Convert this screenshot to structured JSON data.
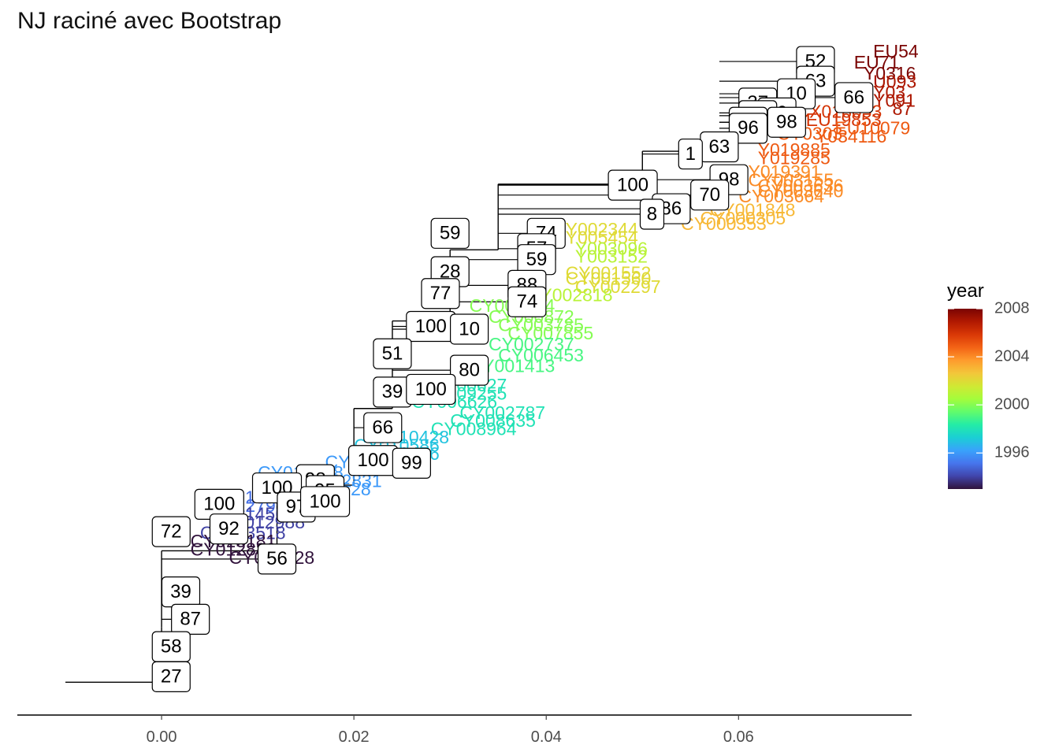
{
  "chart_data": {
    "type": "tree",
    "title": "NJ raciné avec Bootstrap",
    "xlabel": "",
    "ylabel": "",
    "xlim": [
      -0.015,
      0.078
    ],
    "x_ticks": [
      "0.00",
      "0.02",
      "0.04",
      "0.06"
    ],
    "x_tick_values": [
      0.0,
      0.02,
      0.04,
      0.06
    ],
    "legend": {
      "title": "year",
      "position": "right",
      "range": [
        1993,
        2008
      ],
      "ticks": [
        "1996",
        "2000",
        "2004",
        "2008"
      ],
      "tick_values": [
        1996,
        2000,
        2004,
        2008
      ],
      "colormap": [
        "#30123b",
        "#4145ab",
        "#4675ed",
        "#39a2fc",
        "#1bcfd4",
        "#24eca6",
        "#61fc6c",
        "#a4fc3b",
        "#d1e834",
        "#f3c63a",
        "#fe9b2d",
        "#f36315",
        "#d93806",
        "#b11901",
        "#7a0403"
      ]
    },
    "backbone": [
      {
        "x": -0.01,
        "y": 6
      },
      {
        "x": 0.0,
        "y": 6
      },
      {
        "x": 0.0,
        "y": 16
      },
      {
        "x": 0.0,
        "y": 22
      },
      {
        "x": 0.012,
        "y": 30
      },
      {
        "x": 0.02,
        "y": 42
      },
      {
        "x": 0.024,
        "y": 56
      },
      {
        "x": 0.03,
        "y": 72
      },
      {
        "x": 0.035,
        "y": 85
      },
      {
        "x": 0.05,
        "y": 97
      },
      {
        "x": 0.058,
        "y": 103
      }
    ],
    "bootstrap_labels": [
      {
        "value": "52",
        "x": 0.068,
        "y": 119.4
      },
      {
        "value": "63",
        "x": 0.068,
        "y": 115.8
      },
      {
        "value": "10",
        "x": 0.066,
        "y": 113.5
      },
      {
        "value": "66",
        "x": 0.072,
        "y": 112.8
      },
      {
        "value": "37",
        "x": 0.062,
        "y": 111.8
      },
      {
        "value": "99",
        "x": 0.064,
        "y": 110.0
      },
      {
        "value": "56",
        "x": 0.062,
        "y": 109.5
      },
      {
        "value": "55",
        "x": 0.061,
        "y": 108.3
      },
      {
        "value": "98",
        "x": 0.065,
        "y": 108.3
      },
      {
        "value": "96",
        "x": 0.061,
        "y": 107.2
      },
      {
        "value": "63",
        "x": 0.058,
        "y": 103.8
      },
      {
        "value": "1",
        "x": 0.055,
        "y": 102.5
      },
      {
        "value": "98",
        "x": 0.059,
        "y": 97.8
      },
      {
        "value": "70",
        "x": 0.057,
        "y": 95.0
      },
      {
        "value": "100",
        "x": 0.049,
        "y": 96.8
      },
      {
        "value": "86",
        "x": 0.053,
        "y": 92.5
      },
      {
        "value": "8",
        "x": 0.051,
        "y": 91.5
      },
      {
        "value": "59",
        "x": 0.03,
        "y": 88.0
      },
      {
        "value": "74",
        "x": 0.04,
        "y": 88.0
      },
      {
        "value": "57",
        "x": 0.039,
        "y": 85.2
      },
      {
        "value": "59",
        "x": 0.039,
        "y": 83.2
      },
      {
        "value": "28",
        "x": 0.03,
        "y": 81.0
      },
      {
        "value": "88",
        "x": 0.038,
        "y": 78.5
      },
      {
        "value": "74",
        "x": 0.038,
        "y": 75.5
      },
      {
        "value": "77",
        "x": 0.029,
        "y": 77.0
      },
      {
        "value": "100",
        "x": 0.028,
        "y": 71.0
      },
      {
        "value": "10",
        "x": 0.032,
        "y": 70.5
      },
      {
        "value": "51",
        "x": 0.024,
        "y": 66.0
      },
      {
        "value": "80",
        "x": 0.032,
        "y": 63.0
      },
      {
        "value": "39",
        "x": 0.024,
        "y": 59.0
      },
      {
        "value": "100",
        "x": 0.028,
        "y": 59.5
      },
      {
        "value": "66",
        "x": 0.023,
        "y": 52.5
      },
      {
        "value": "100",
        "x": 0.022,
        "y": 46.5
      },
      {
        "value": "99",
        "x": 0.026,
        "y": 46.0
      },
      {
        "value": "98",
        "x": 0.016,
        "y": 43.0
      },
      {
        "value": "95",
        "x": 0.017,
        "y": 41.0
      },
      {
        "value": "100",
        "x": 0.012,
        "y": 41.5
      },
      {
        "value": "100",
        "x": 0.006,
        "y": 38.5
      },
      {
        "value": "97",
        "x": 0.014,
        "y": 38.0
      },
      {
        "value": "100",
        "x": 0.017,
        "y": 39.0
      },
      {
        "value": "72",
        "x": 0.001,
        "y": 33.5
      },
      {
        "value": "92",
        "x": 0.007,
        "y": 34.0
      },
      {
        "value": "56",
        "x": 0.012,
        "y": 28.5
      },
      {
        "value": "39",
        "x": 0.002,
        "y": 22.5
      },
      {
        "value": "87",
        "x": 0.003,
        "y": 17.5
      },
      {
        "value": "58",
        "x": 0.001,
        "y": 12.5
      },
      {
        "value": "27",
        "x": 0.001,
        "y": 7.0
      }
    ],
    "tip_labels": [
      {
        "text": "EU54",
        "x": 0.074,
        "y": 121.0,
        "year": 2008
      },
      {
        "text": "EU71",
        "x": 0.072,
        "y": 119.0,
        "year": 2008
      },
      {
        "text": "Y0316",
        "x": 0.073,
        "y": 117.0,
        "year": 2008
      },
      {
        "text": "U093",
        "x": 0.074,
        "y": 115.5,
        "year": 2007
      },
      {
        "text": "Y03",
        "x": 0.074,
        "y": 113.5,
        "year": 2007
      },
      {
        "text": "Y091",
        "x": 0.074,
        "y": 112.0,
        "year": 2007
      },
      {
        "text": "87",
        "x": 0.076,
        "y": 110.5,
        "year": 2007
      },
      {
        "text": "CX018053",
        "x": 0.066,
        "y": 110.0,
        "year": 2006
      },
      {
        "text": "EU19853",
        "x": 0.067,
        "y": 108.5,
        "year": 2006
      },
      {
        "text": "EU10079",
        "x": 0.07,
        "y": 107.0,
        "year": 2005
      },
      {
        "text": "Y034116",
        "x": 0.068,
        "y": 105.5,
        "year": 2005
      },
      {
        "text": "CY0303",
        "x": 0.064,
        "y": 106.0,
        "year": 2005
      },
      {
        "text": "Y019885",
        "x": 0.062,
        "y": 103.0,
        "year": 2005
      },
      {
        "text": "Y019285",
        "x": 0.062,
        "y": 101.5,
        "year": 2005
      },
      {
        "text": "Y019391",
        "x": 0.061,
        "y": 99.0,
        "year": 2004
      },
      {
        "text": "CY003155",
        "x": 0.061,
        "y": 97.5,
        "year": 2004
      },
      {
        "text": "CY003636",
        "x": 0.062,
        "y": 96.5,
        "year": 2004
      },
      {
        "text": "CY003640",
        "x": 0.062,
        "y": 95.5,
        "year": 2004
      },
      {
        "text": "CY003664",
        "x": 0.06,
        "y": 94.5,
        "year": 2004
      },
      {
        "text": "CY001848",
        "x": 0.057,
        "y": 92.0,
        "year": 2003
      },
      {
        "text": "CY000305",
        "x": 0.056,
        "y": 90.5,
        "year": 2003
      },
      {
        "text": "CY000353",
        "x": 0.054,
        "y": 89.5,
        "year": 2003
      },
      {
        "text": "Y002344",
        "x": 0.042,
        "y": 88.5,
        "year": 2002
      },
      {
        "text": "Y005454",
        "x": 0.042,
        "y": 87.0,
        "year": 2002
      },
      {
        "text": "Y003096",
        "x": 0.043,
        "y": 85.0,
        "year": 2001
      },
      {
        "text": "Y003152",
        "x": 0.043,
        "y": 83.5,
        "year": 2001
      },
      {
        "text": "CY001552",
        "x": 0.042,
        "y": 80.5,
        "year": 2002
      },
      {
        "text": "CY001560",
        "x": 0.042,
        "y": 79.5,
        "year": 2002
      },
      {
        "text": "CY002297",
        "x": 0.043,
        "y": 78.0,
        "year": 2002
      },
      {
        "text": "CY002818",
        "x": 0.038,
        "y": 76.5,
        "year": 2001
      },
      {
        "text": "CY002094",
        "x": 0.032,
        "y": 74.5,
        "year": 2000
      },
      {
        "text": "CY000872",
        "x": 0.034,
        "y": 72.5,
        "year": 2000
      },
      {
        "text": "CY003785",
        "x": 0.035,
        "y": 71.0,
        "year": 2000
      },
      {
        "text": "CY007855",
        "x": 0.036,
        "y": 69.5,
        "year": 2000
      },
      {
        "text": "CY002737",
        "x": 0.034,
        "y": 67.5,
        "year": 1999
      },
      {
        "text": "CY006453",
        "x": 0.035,
        "y": 65.5,
        "year": 1999
      },
      {
        "text": "CY001413",
        "x": 0.032,
        "y": 63.5,
        "year": 1999
      },
      {
        "text": "CY000627",
        "x": 0.027,
        "y": 60.0,
        "year": 1998
      },
      {
        "text": "CY009255",
        "x": 0.027,
        "y": 58.5,
        "year": 1998
      },
      {
        "text": "CY006626",
        "x": 0.026,
        "y": 57.0,
        "year": 1998
      },
      {
        "text": "CY002787",
        "x": 0.031,
        "y": 55.0,
        "year": 1998
      },
      {
        "text": "CY008635",
        "x": 0.03,
        "y": 53.5,
        "year": 1998
      },
      {
        "text": "CY008964",
        "x": 0.028,
        "y": 52.0,
        "year": 1998
      },
      {
        "text": "CY010428",
        "x": 0.021,
        "y": 50.5,
        "year": 1997
      },
      {
        "text": "CY010586",
        "x": 0.02,
        "y": 49.0,
        "year": 1997
      },
      {
        "text": "CY009476",
        "x": 0.02,
        "y": 47.5,
        "year": 1997
      },
      {
        "text": "CY010036",
        "x": 0.017,
        "y": 46.0,
        "year": 1996
      },
      {
        "text": "CY010748",
        "x": 0.01,
        "y": 44.0,
        "year": 1996
      },
      {
        "text": "CY012831",
        "x": 0.014,
        "y": 42.5,
        "year": 1996
      },
      {
        "text": "CY011528",
        "x": 0.013,
        "y": 41.0,
        "year": 1996
      },
      {
        "text": "CY013986",
        "x": 0.005,
        "y": 39.5,
        "year": 1995
      },
      {
        "text": "CY012795",
        "x": 0.004,
        "y": 38.0,
        "year": 1995
      },
      {
        "text": "CY014568",
        "x": 0.005,
        "y": 36.5,
        "year": 1994
      },
      {
        "text": "CY012988",
        "x": 0.006,
        "y": 35.0,
        "year": 1994
      },
      {
        "text": "CY013518",
        "x": 0.004,
        "y": 33.0,
        "year": 1994
      },
      {
        "text": "CY013181",
        "x": 0.003,
        "y": 31.5,
        "year": 1993
      },
      {
        "text": "CY012880",
        "x": 0.003,
        "y": 30.0,
        "year": 1993
      },
      {
        "text": "CY002128",
        "x": 0.007,
        "y": 28.5,
        "year": 1993
      }
    ]
  }
}
